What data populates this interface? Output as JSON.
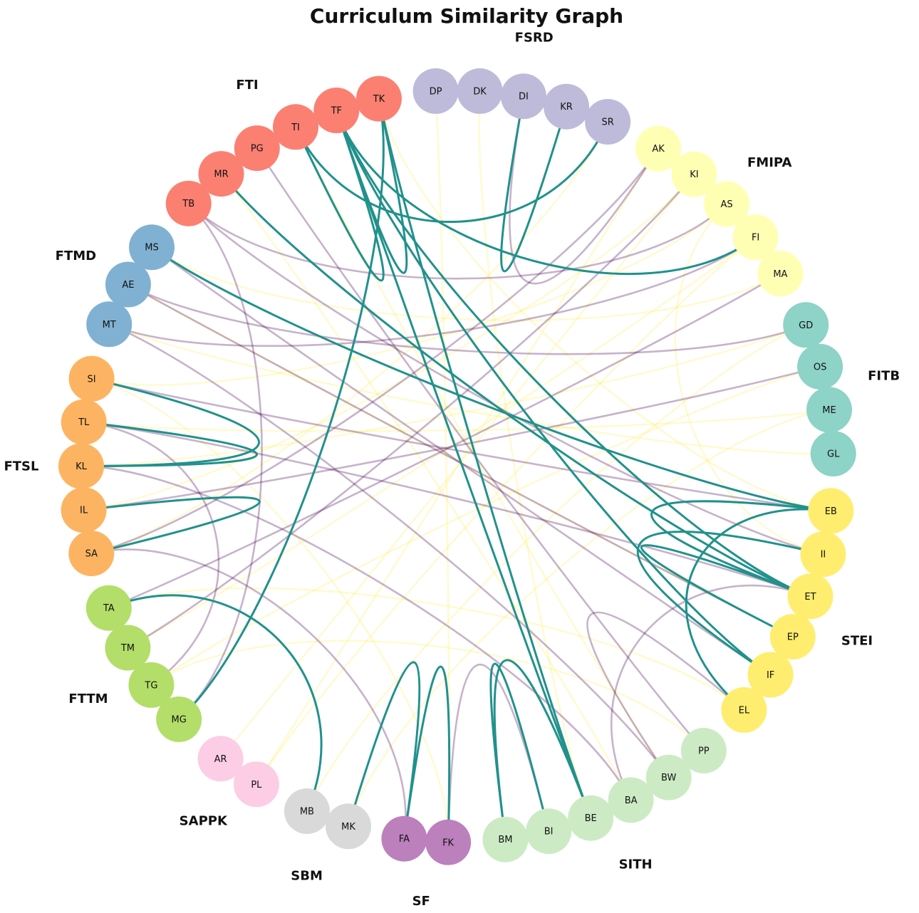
{
  "title": "Curriculum Similarity Graph",
  "groups": [
    {
      "name": "FSRD",
      "color": "#bebada",
      "nodes": [
        "DP",
        "DK",
        "DI",
        "KR",
        "SR"
      ]
    },
    {
      "name": "FMIPA",
      "color": "#ffffb3",
      "nodes": [
        "AK",
        "KI",
        "AS",
        "FI",
        "MA"
      ]
    },
    {
      "name": "FITB",
      "color": "#8dd3c7",
      "nodes": [
        "GD",
        "OS",
        "ME",
        "GL"
      ]
    },
    {
      "name": "STEI",
      "color": "#ffed6f",
      "nodes": [
        "EB",
        "II",
        "ET",
        "EP",
        "IF",
        "EL"
      ]
    },
    {
      "name": "SITH",
      "color": "#ccebc5",
      "nodes": [
        "PP",
        "BW",
        "BA",
        "BE",
        "BI",
        "BM"
      ]
    },
    {
      "name": "SF",
      "color": "#bc80bd",
      "nodes": [
        "FK",
        "FA"
      ]
    },
    {
      "name": "SBM",
      "color": "#d9d9d9",
      "nodes": [
        "MK",
        "MB"
      ]
    },
    {
      "name": "SAPPK",
      "color": "#fccde5",
      "nodes": [
        "PL",
        "AR"
      ]
    },
    {
      "name": "FTTM",
      "color": "#b3de69",
      "nodes": [
        "MG",
        "TG",
        "TM",
        "TA"
      ]
    },
    {
      "name": "FTSL",
      "color": "#fdb462",
      "nodes": [
        "SA",
        "IL",
        "KL",
        "TL",
        "SI"
      ]
    },
    {
      "name": "FTMD",
      "color": "#80b1d3",
      "nodes": [
        "MT",
        "AE",
        "MS"
      ]
    },
    {
      "name": "FTI",
      "color": "#fb8072",
      "nodes": [
        "TB",
        "MR",
        "PG",
        "TI",
        "TF",
        "TK"
      ]
    }
  ],
  "edge_colors": {
    "strong": "#21918c",
    "medium": "#440154",
    "weak": "#fde725"
  },
  "edges": [
    [
      "KR",
      "DI",
      "strong"
    ],
    [
      "SR",
      "TI",
      "strong"
    ],
    [
      "TK",
      "MG",
      "strong"
    ],
    [
      "TK",
      "TF",
      "strong"
    ],
    [
      "TK",
      "BE",
      "strong"
    ],
    [
      "TF",
      "FI",
      "strong"
    ],
    [
      "TF",
      "ET",
      "strong"
    ],
    [
      "TF",
      "IF",
      "strong"
    ],
    [
      "TF",
      "BE",
      "strong"
    ],
    [
      "TI",
      "TF",
      "strong"
    ],
    [
      "MS",
      "EB",
      "strong"
    ],
    [
      "MR",
      "ET",
      "strong"
    ],
    [
      "SI",
      "KL",
      "strong"
    ],
    [
      "TL",
      "KL",
      "strong"
    ],
    [
      "IL",
      "SA",
      "strong"
    ],
    [
      "EB",
      "EL",
      "strong"
    ],
    [
      "II",
      "IF",
      "strong"
    ],
    [
      "ET",
      "EP",
      "strong"
    ],
    [
      "ET",
      "EB",
      "strong"
    ],
    [
      "MB",
      "TA",
      "strong"
    ],
    [
      "MK",
      "FA",
      "strong"
    ],
    [
      "FA",
      "FK",
      "strong"
    ],
    [
      "BM",
      "BE",
      "strong"
    ],
    [
      "BI",
      "BM",
      "strong"
    ],
    [
      "DI",
      "AK",
      "medium"
    ],
    [
      "AS",
      "TB",
      "medium"
    ],
    [
      "AK",
      "SA",
      "medium"
    ],
    [
      "MA",
      "TA",
      "medium"
    ],
    [
      "FI",
      "MT",
      "medium"
    ],
    [
      "OS",
      "IL",
      "medium"
    ],
    [
      "TB",
      "II",
      "medium"
    ],
    [
      "PG",
      "PP",
      "medium"
    ],
    [
      "AE",
      "EP",
      "medium"
    ],
    [
      "MT",
      "BW",
      "medium"
    ],
    [
      "TM",
      "KI",
      "medium"
    ],
    [
      "TG",
      "TL",
      "medium"
    ],
    [
      "TL",
      "ET",
      "medium"
    ],
    [
      "KL",
      "BA",
      "medium"
    ],
    [
      "SI",
      "EB",
      "medium"
    ],
    [
      "FK",
      "BI",
      "medium"
    ],
    [
      "BA",
      "ET",
      "medium"
    ],
    [
      "BW",
      "EL",
      "medium"
    ],
    [
      "GD",
      "AE",
      "medium"
    ],
    [
      "MS",
      "IF",
      "medium"
    ],
    [
      "TB",
      "MG",
      "medium"
    ],
    [
      "SA",
      "FA",
      "medium"
    ],
    [
      "DP",
      "FK",
      "weak"
    ],
    [
      "KI",
      "IL",
      "weak"
    ],
    [
      "AS",
      "SI",
      "weak"
    ],
    [
      "FI",
      "TM",
      "weak"
    ],
    [
      "MA",
      "MS",
      "weak"
    ],
    [
      "ME",
      "TL",
      "weak"
    ],
    [
      "GL",
      "MT",
      "weak"
    ],
    [
      "GD",
      "KL",
      "weak"
    ],
    [
      "AR",
      "KI",
      "weak"
    ],
    [
      "PL",
      "FI",
      "weak"
    ],
    [
      "MB",
      "GD",
      "weak"
    ],
    [
      "TK",
      "EB",
      "weak"
    ],
    [
      "DK",
      "BE",
      "weak"
    ],
    [
      "SR",
      "SA",
      "weak"
    ],
    [
      "EL",
      "TA",
      "weak"
    ],
    [
      "EP",
      "AE",
      "weak"
    ],
    [
      "PP",
      "TG",
      "weak"
    ],
    [
      "BW",
      "TI",
      "weak"
    ],
    [
      "BA",
      "MR",
      "weak"
    ],
    [
      "II",
      "AS",
      "weak"
    ],
    [
      "MK",
      "ME",
      "weak"
    ],
    [
      "FK",
      "SI",
      "weak"
    ],
    [
      "TG",
      "OS",
      "weak"
    ],
    [
      "AK",
      "PL",
      "weak"
    ]
  ]
}
